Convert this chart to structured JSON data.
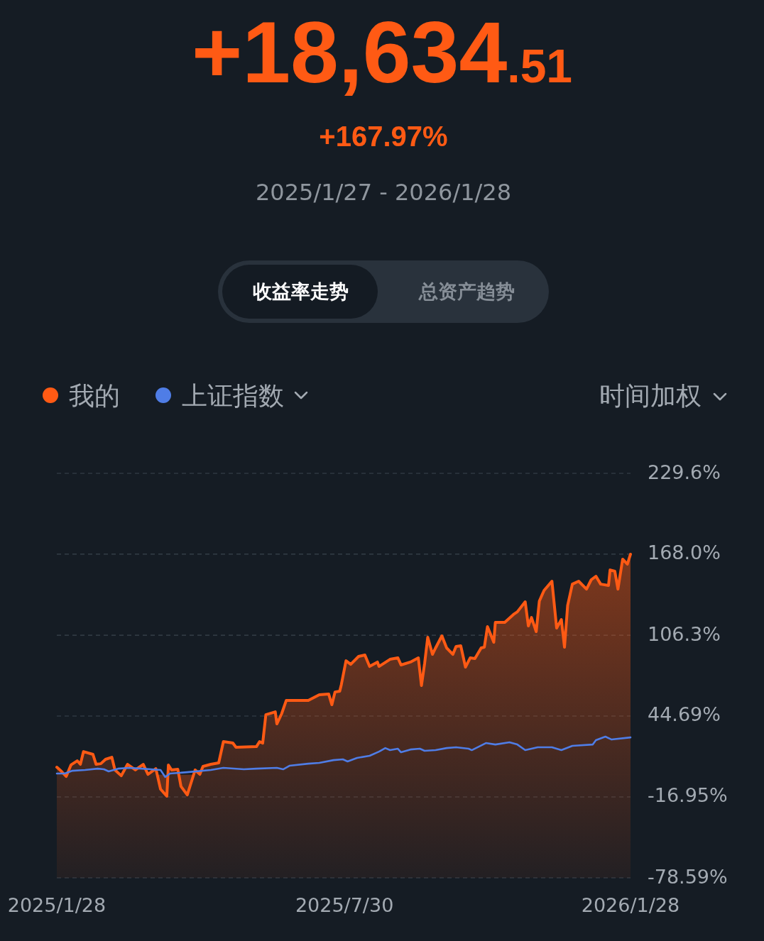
{
  "chart_data": {
    "type": "line",
    "title": "+18,634.51",
    "subtitle": "+167.97%",
    "annotations": [
      "2025/1/27 - 2026/1/28",
      "收益率走势",
      "总资产趋势",
      "时间加权"
    ],
    "xlim": [
      "2025-01-28",
      "2026-01-28"
    ],
    "xticks": [
      {
        "value": "2025-01-28",
        "label": "2025/1/28"
      },
      {
        "value": "2025-07-30",
        "label": "2025/7/30"
      },
      {
        "value": "2026-01-28",
        "label": "2026/1/28"
      }
    ],
    "ylim": [
      -78.59,
      229.6
    ],
    "yticks": [
      {
        "value": -78.59,
        "label": "-78.59%"
      },
      {
        "value": -16.95,
        "label": "-16.95%"
      },
      {
        "value": 44.69,
        "label": "44.69%"
      },
      {
        "value": 106.3,
        "label": "106.3%"
      },
      {
        "value": 168.0,
        "label": "168.0%"
      },
      {
        "value": 229.6,
        "label": "229.6%"
      }
    ],
    "grid": "y",
    "legend": "top left",
    "series": [
      {
        "name": "我的",
        "color": "#ff5a14",
        "type": "area",
        "x": [
          "2025-01-28",
          "2025-01-31",
          "2025-02-03",
          "2025-02-06",
          "2025-02-10",
          "2025-02-12",
          "2025-02-14",
          "2025-02-20",
          "2025-02-22",
          "2025-02-25",
          "2025-02-28",
          "2025-03-04",
          "2025-03-06",
          "2025-03-10",
          "2025-03-14",
          "2025-03-19",
          "2025-03-24",
          "2025-03-27",
          "2025-04-01",
          "2025-04-04",
          "2025-04-08",
          "2025-04-09",
          "2025-04-11",
          "2025-04-15",
          "2025-04-17",
          "2025-04-21",
          "2025-04-26",
          "2025-04-29",
          "2025-05-01",
          "2025-05-06",
          "2025-05-11",
          "2025-05-14",
          "2025-05-20",
          "2025-05-22",
          "2025-06-04",
          "2025-06-06",
          "2025-06-08",
          "2025-06-10",
          "2025-06-16",
          "2025-06-17",
          "2025-06-20",
          "2025-06-23",
          "2025-07-07",
          "2025-07-14",
          "2025-07-20",
          "2025-07-22",
          "2025-07-24",
          "2025-07-27",
          "2025-07-28",
          "2025-07-31",
          "2025-08-03",
          "2025-08-08",
          "2025-08-12",
          "2025-08-15",
          "2025-08-20",
          "2025-08-21",
          "2025-08-28",
          "2025-09-02",
          "2025-09-04",
          "2025-09-10",
          "2025-09-15",
          "2025-09-17",
          "2025-09-19",
          "2025-09-21",
          "2025-09-24",
          "2025-09-26",
          "2025-09-30",
          "2025-10-03",
          "2025-10-07",
          "2025-10-09",
          "2025-10-12",
          "2025-10-15",
          "2025-10-18",
          "2025-10-21",
          "2025-10-25",
          "2025-10-27",
          "2025-10-29",
          "2025-11-02",
          "2025-11-03",
          "2025-11-09",
          "2025-11-15",
          "2025-11-17",
          "2025-11-22",
          "2025-11-24",
          "2025-11-26",
          "2025-11-29",
          "2025-12-01",
          "2025-12-04",
          "2025-12-09",
          "2025-12-12",
          "2025-12-15",
          "2025-12-17",
          "2025-12-19",
          "2025-12-22",
          "2025-12-26",
          "2025-12-31",
          "2026-01-03",
          "2026-01-06",
          "2026-01-09",
          "2026-01-14",
          "2026-01-15",
          "2026-01-18",
          "2026-01-20",
          "2026-01-23",
          "2026-01-26",
          "2026-01-28"
        ],
        "values": [
          5.7,
          2.5,
          -1.3,
          7.4,
          10.6,
          7.9,
          17.6,
          15.5,
          7.9,
          8.4,
          11.7,
          13.3,
          3.6,
          -0.8,
          7.9,
          3.6,
          7.9,
          0.3,
          4.6,
          -11.0,
          -16.4,
          7.4,
          3.6,
          4.1,
          -8.9,
          -15.4,
          3.6,
          0.3,
          6.3,
          7.9,
          9.0,
          25.2,
          24.1,
          20.9,
          21.4,
          25.2,
          24.1,
          45.7,
          47.9,
          38.7,
          46.3,
          56.6,
          56.6,
          60.9,
          61.4,
          53.3,
          63.0,
          63.6,
          68.5,
          86.8,
          84.1,
          90.1,
          91.2,
          82.5,
          85.8,
          82.5,
          87.9,
          89.0,
          83.6,
          85.8,
          89.0,
          67.9,
          84.7,
          104.7,
          91.7,
          96.6,
          105.8,
          96.6,
          91.7,
          97.7,
          98.2,
          82.0,
          89.0,
          88.5,
          96.6,
          97.1,
          112.8,
          100.9,
          116.0,
          116.0,
          122.5,
          124.1,
          131.7,
          113.3,
          119.8,
          109.0,
          132.3,
          140.4,
          147.4,
          111.7,
          118.2,
          97.1,
          129.0,
          145.2,
          147.4,
          141.4,
          148.5,
          151.2,
          145.2,
          144.2,
          156.0,
          155.0,
          141.4,
          164.2,
          160.4,
          168.0
        ]
      },
      {
        "name": "上证指数",
        "color": "#4f7de6",
        "type": "line",
        "x": [
          "2025-01-28",
          "2025-02-02",
          "2025-02-07",
          "2025-02-15",
          "2025-02-23",
          "2025-02-27",
          "2025-03-02",
          "2025-03-08",
          "2025-03-15",
          "2025-03-23",
          "2025-04-04",
          "2025-04-07",
          "2025-04-10",
          "2025-04-21",
          "2025-05-06",
          "2025-05-14",
          "2025-05-27",
          "2025-06-04",
          "2025-06-17",
          "2025-06-21",
          "2025-06-25",
          "2025-07-07",
          "2025-07-14",
          "2025-07-23",
          "2025-07-29",
          "2025-08-01",
          "2025-08-07",
          "2025-08-15",
          "2025-08-21",
          "2025-08-25",
          "2025-08-28",
          "2025-09-02",
          "2025-09-04",
          "2025-09-10",
          "2025-09-16",
          "2025-09-19",
          "2025-09-26",
          "2025-10-03",
          "2025-10-09",
          "2025-10-17",
          "2025-10-19",
          "2025-10-28",
          "2025-11-03",
          "2025-11-12",
          "2025-11-17",
          "2025-11-22",
          "2025-11-30",
          "2025-12-09",
          "2025-12-15",
          "2025-12-22",
          "2026-01-04",
          "2026-01-06",
          "2026-01-12",
          "2026-01-16",
          "2026-01-28"
        ],
        "values": [
          0.9,
          0.9,
          3.0,
          3.6,
          4.6,
          4.1,
          2.5,
          4.6,
          5.2,
          4.6,
          3.6,
          -1.8,
          0.9,
          1.9,
          3.6,
          5.2,
          4.1,
          4.6,
          5.2,
          4.1,
          6.8,
          8.4,
          9.0,
          11.1,
          11.7,
          10.1,
          12.8,
          14.4,
          17.6,
          20.3,
          18.7,
          19.8,
          17.1,
          19.2,
          19.8,
          18.2,
          18.7,
          20.3,
          20.9,
          19.8,
          18.7,
          24.1,
          23.0,
          24.7,
          23.0,
          18.7,
          20.9,
          20.9,
          18.7,
          22.0,
          23.0,
          26.3,
          29.0,
          26.8,
          28.4
        ]
      }
    ]
  }
}
